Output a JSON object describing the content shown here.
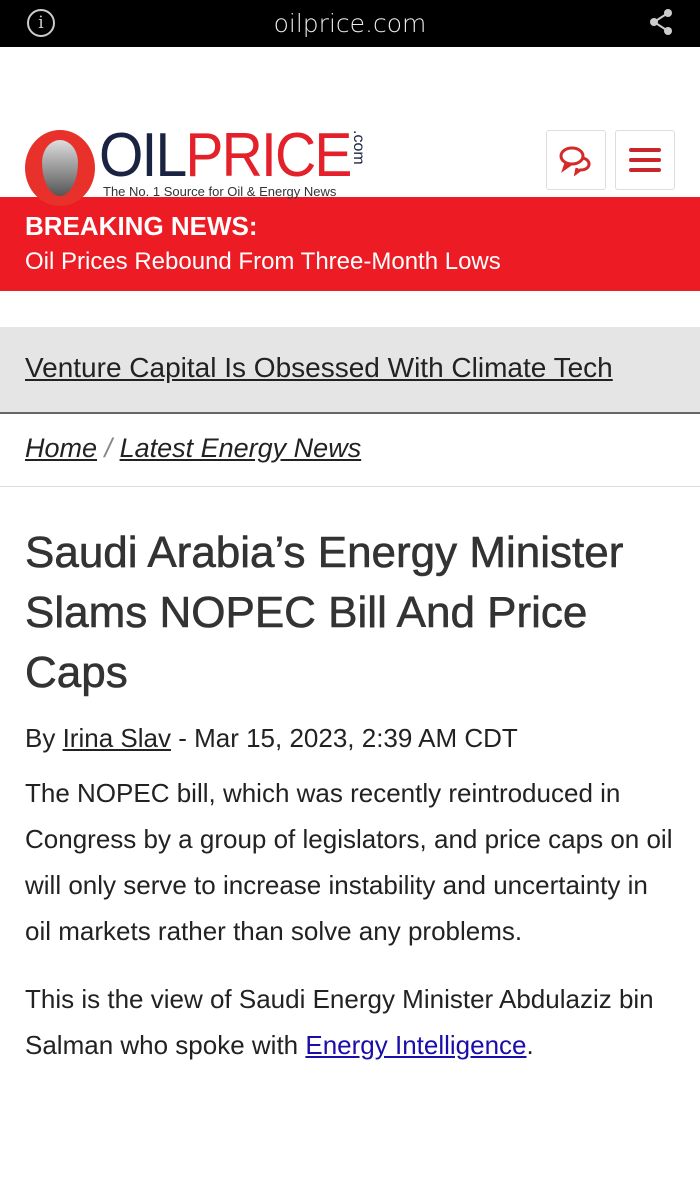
{
  "browser": {
    "url": "oilprice.com",
    "info_icon": "info-icon",
    "share_icon": "share-icon"
  },
  "header": {
    "logo_oil": "OIL",
    "logo_price": "PRICE",
    "logo_com": ".com",
    "tagline": "The No. 1 Source for Oil & Energy News",
    "accent": "#ed1c24"
  },
  "breaking": {
    "title": "BREAKING NEWS:",
    "headline": "Oil Prices Rebound From Three-Month Lows"
  },
  "promo": {
    "link": "Venture Capital Is Obsessed With Climate Tech"
  },
  "breadcrumb": {
    "home": "Home",
    "sep": "/",
    "section": "Latest Energy News"
  },
  "article": {
    "title": "Saudi Arabia’s Energy Minister Slams NOPEC Bill And Price Caps",
    "by": "By ",
    "author": "Irina Slav",
    "date": " - Mar 15, 2023, 2:39 AM CDT",
    "p1": "The NOPEC bill, which was recently reintroduced in Congress by a group of legislators, and price caps on oil will only serve to increase instability and uncertainty in oil markets rather than solve any problems.",
    "p2_text": "This is the view of Saudi Energy Minister Abdulaziz bin Salman who spoke with ",
    "p2_link": "Energy Intelligence",
    "p2_end": "."
  }
}
